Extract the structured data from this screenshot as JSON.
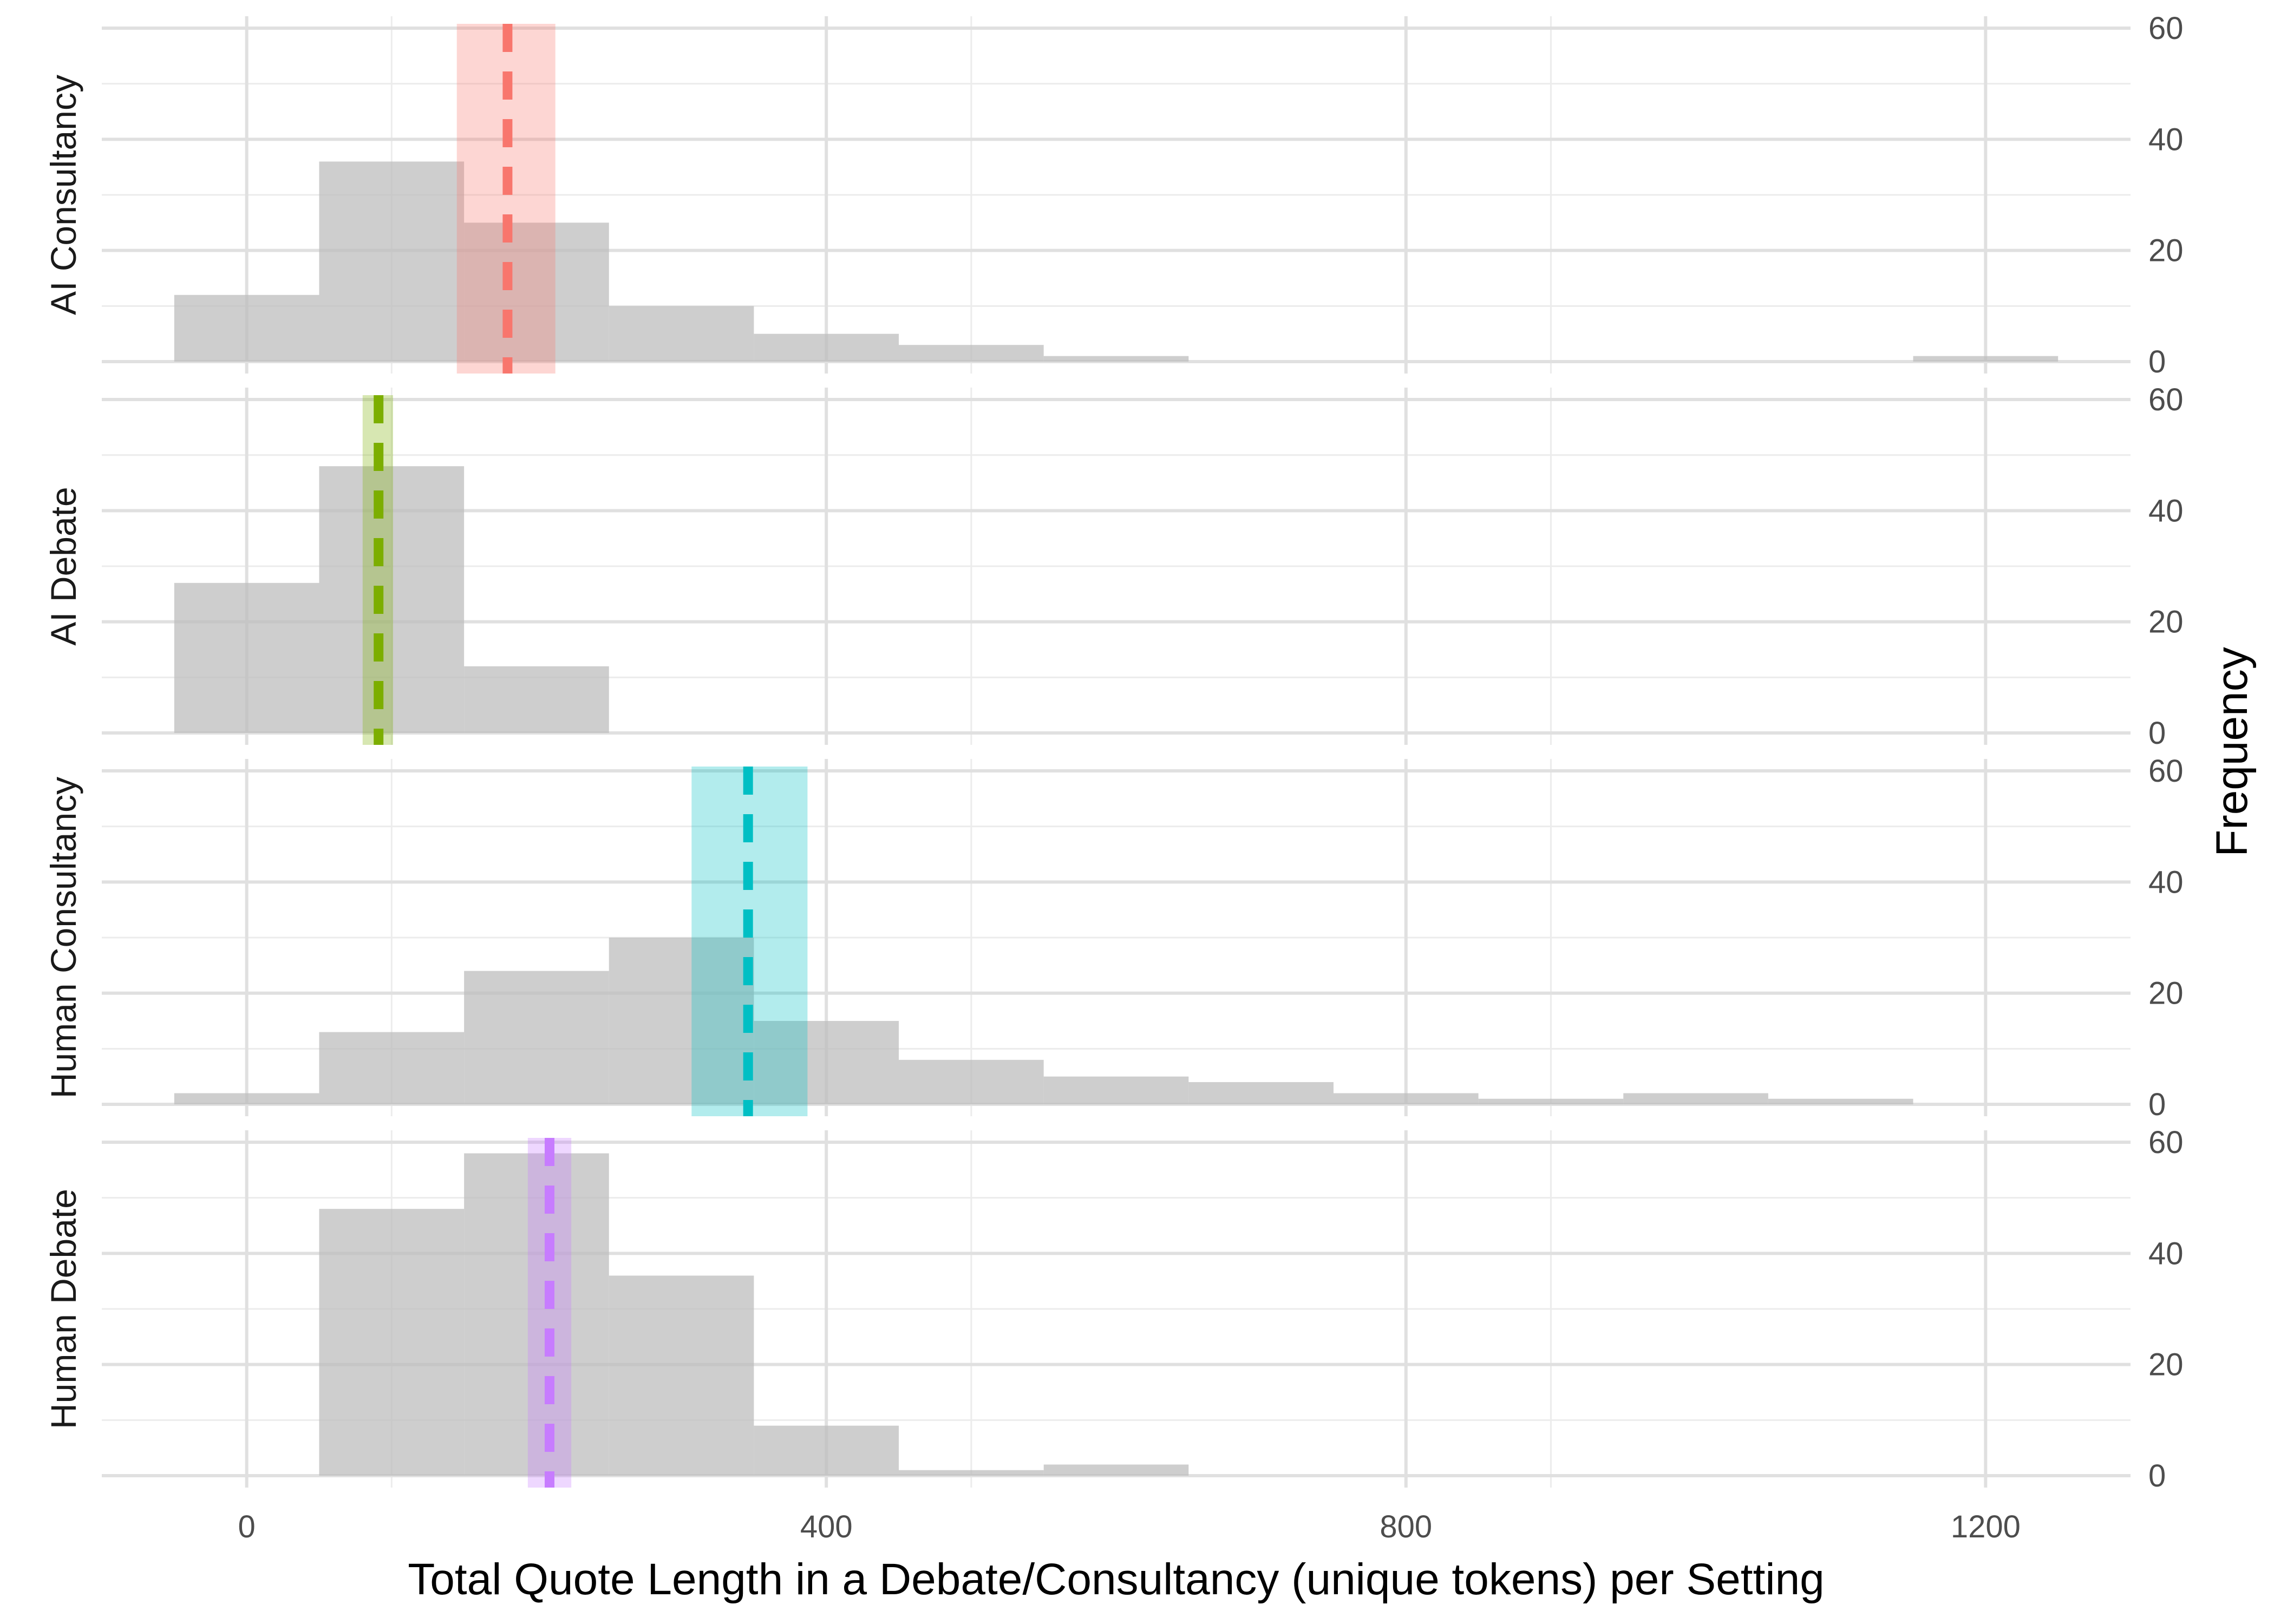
{
  "chart_data": {
    "type": "bar",
    "subtype": "faceted histogram",
    "xlabel": "Total Quote Length in a Debate/Consultancy (unique tokens) per Setting",
    "ylabel": "Frequency",
    "xlim": [
      -100,
      1300
    ],
    "ylim": [
      0,
      60
    ],
    "x_ticks": [
      0,
      400,
      800,
      1200
    ],
    "y_ticks": [
      0,
      20,
      40,
      60
    ],
    "bin_width": 100,
    "bar_color": "#bebebe",
    "grid": true,
    "facets": [
      {
        "name": "AI Consultancy",
        "color": "#F8766D",
        "mean": 180,
        "interval": [
          145,
          213
        ],
        "bins": [
          {
            "x0": -50,
            "x1": 50,
            "count": 12
          },
          {
            "x0": 50,
            "x1": 150,
            "count": 36
          },
          {
            "x0": 150,
            "x1": 250,
            "count": 25
          },
          {
            "x0": 250,
            "x1": 350,
            "count": 10
          },
          {
            "x0": 350,
            "x1": 450,
            "count": 5
          },
          {
            "x0": 450,
            "x1": 550,
            "count": 3
          },
          {
            "x0": 550,
            "x1": 650,
            "count": 1
          },
          {
            "x0": 1150,
            "x1": 1250,
            "count": 1
          }
        ]
      },
      {
        "name": "AI Debate",
        "color": "#7CAE00",
        "mean": 91,
        "interval": [
          80,
          101
        ],
        "bins": [
          {
            "x0": -50,
            "x1": 50,
            "count": 27
          },
          {
            "x0": 50,
            "x1": 150,
            "count": 48
          },
          {
            "x0": 150,
            "x1": 250,
            "count": 12
          }
        ]
      },
      {
        "name": "Human Consultancy",
        "color": "#00BFC4",
        "mean": 346,
        "interval": [
          307,
          387
        ],
        "bins": [
          {
            "x0": -50,
            "x1": 50,
            "count": 2
          },
          {
            "x0": 50,
            "x1": 150,
            "count": 13
          },
          {
            "x0": 150,
            "x1": 250,
            "count": 24
          },
          {
            "x0": 250,
            "x1": 350,
            "count": 30
          },
          {
            "x0": 350,
            "x1": 450,
            "count": 15
          },
          {
            "x0": 450,
            "x1": 550,
            "count": 8
          },
          {
            "x0": 550,
            "x1": 650,
            "count": 5
          },
          {
            "x0": 650,
            "x1": 750,
            "count": 4
          },
          {
            "x0": 750,
            "x1": 850,
            "count": 2
          },
          {
            "x0": 850,
            "x1": 950,
            "count": 1
          },
          {
            "x0": 950,
            "x1": 1050,
            "count": 2
          },
          {
            "x0": 1050,
            "x1": 1150,
            "count": 1
          }
        ]
      },
      {
        "name": "Human Debate",
        "color": "#C77CFF",
        "mean": 209,
        "interval": [
          194,
          224
        ],
        "bins": [
          {
            "x0": 50,
            "x1": 150,
            "count": 48
          },
          {
            "x0": 150,
            "x1": 250,
            "count": 58
          },
          {
            "x0": 250,
            "x1": 350,
            "count": 36
          },
          {
            "x0": 350,
            "x1": 450,
            "count": 9
          },
          {
            "x0": 450,
            "x1": 550,
            "count": 1
          },
          {
            "x0": 550,
            "x1": 650,
            "count": 2
          }
        ]
      }
    ]
  }
}
